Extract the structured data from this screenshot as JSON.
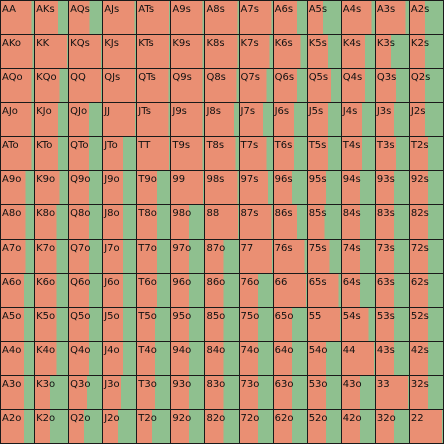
{
  "colors": {
    "fold": "#ea8f73",
    "action": "#8fc08f",
    "grid_line": "#1a1a1a"
  },
  "ranks": [
    "A",
    "K",
    "Q",
    "J",
    "T",
    "9",
    "8",
    "7",
    "6",
    "5",
    "4",
    "3",
    "2"
  ],
  "hands": [
    {
      "label": "AA",
      "freq": 0.08
    },
    {
      "label": "AKs",
      "freq": 0.3
    },
    {
      "label": "AQs",
      "freq": 0.38
    },
    {
      "label": "AJs",
      "freq": 0.05
    },
    {
      "label": "ATs",
      "freq": 0.03
    },
    {
      "label": "A9s",
      "freq": 0.05
    },
    {
      "label": "A8s",
      "freq": 0.05
    },
    {
      "label": "A7s",
      "freq": 0.05
    },
    {
      "label": "A6s",
      "freq": 0.3
    },
    {
      "label": "A5s",
      "freq": 0.55
    },
    {
      "label": "A4s",
      "freq": 0.1
    },
    {
      "label": "A3s",
      "freq": 0.1
    },
    {
      "label": "A2s",
      "freq": 0.55
    },
    {
      "label": "AKo",
      "freq": 0.05
    },
    {
      "label": "KK",
      "freq": 0.03
    },
    {
      "label": "KQs",
      "freq": 0.03
    },
    {
      "label": "KJs",
      "freq": 0.03
    },
    {
      "label": "KTs",
      "freq": 0.03
    },
    {
      "label": "K9s",
      "freq": 0.05
    },
    {
      "label": "K8s",
      "freq": 0.05
    },
    {
      "label": "K7s",
      "freq": 0.1
    },
    {
      "label": "K6s",
      "freq": 0.2
    },
    {
      "label": "K5s",
      "freq": 0.4
    },
    {
      "label": "K4s",
      "freq": 0.3
    },
    {
      "label": "K3s",
      "freq": 0.55
    },
    {
      "label": "K2s",
      "freq": 0.55
    },
    {
      "label": "AQo",
      "freq": 0.08
    },
    {
      "label": "KQo",
      "freq": 0.25
    },
    {
      "label": "QQ",
      "freq": 0.03
    },
    {
      "label": "QJs",
      "freq": 0.03
    },
    {
      "label": "QTs",
      "freq": 0.05
    },
    {
      "label": "Q9s",
      "freq": 0.05
    },
    {
      "label": "Q8s",
      "freq": 0.08
    },
    {
      "label": "Q7s",
      "freq": 0.2
    },
    {
      "label": "Q6s",
      "freq": 0.3
    },
    {
      "label": "Q5s",
      "freq": 0.3
    },
    {
      "label": "Q4s",
      "freq": 0.3
    },
    {
      "label": "Q3s",
      "freq": 0.4
    },
    {
      "label": "Q2s",
      "freq": 0.55
    },
    {
      "label": "AJo",
      "freq": 0.08
    },
    {
      "label": "KJo",
      "freq": 0.3
    },
    {
      "label": "QJo",
      "freq": 0.4
    },
    {
      "label": "JJ",
      "freq": 0.03
    },
    {
      "label": "JTs",
      "freq": 0.05
    },
    {
      "label": "J9s",
      "freq": 0.05
    },
    {
      "label": "J8s",
      "freq": 0.15
    },
    {
      "label": "J7s",
      "freq": 0.3
    },
    {
      "label": "J6s",
      "freq": 0.4
    },
    {
      "label": "J5s",
      "freq": 0.4
    },
    {
      "label": "J4s",
      "freq": 0.4
    },
    {
      "label": "J3s",
      "freq": 0.45
    },
    {
      "label": "J2s",
      "freq": 0.55
    },
    {
      "label": "ATo",
      "freq": 0.08
    },
    {
      "label": "KTo",
      "freq": 0.3
    },
    {
      "label": "QTo",
      "freq": 0.4
    },
    {
      "label": "JTo",
      "freq": 0.4
    },
    {
      "label": "TT",
      "freq": 0.03
    },
    {
      "label": "T9s",
      "freq": 0.05
    },
    {
      "label": "T8s",
      "freq": 0.1
    },
    {
      "label": "T7s",
      "freq": 0.2
    },
    {
      "label": "T6s",
      "freq": 0.4
    },
    {
      "label": "T5s",
      "freq": 0.4
    },
    {
      "label": "T4s",
      "freq": 0.4
    },
    {
      "label": "T3s",
      "freq": 0.4
    },
    {
      "label": "T2s",
      "freq": 0.45
    },
    {
      "label": "A9o",
      "freq": 0.25
    },
    {
      "label": "K9o",
      "freq": 0.25
    },
    {
      "label": "Q9o",
      "freq": 0.4
    },
    {
      "label": "J9o",
      "freq": 0.4
    },
    {
      "label": "T9o",
      "freq": 0.4
    },
    {
      "label": "99",
      "freq": 0.03
    },
    {
      "label": "98s",
      "freq": 0.05
    },
    {
      "label": "97s",
      "freq": 0.15
    },
    {
      "label": "96s",
      "freq": 0.45
    },
    {
      "label": "95s",
      "freq": 0.45
    },
    {
      "label": "94s",
      "freq": 0.45
    },
    {
      "label": "93s",
      "freq": 0.45
    },
    {
      "label": "92s",
      "freq": 0.45
    },
    {
      "label": "A8o",
      "freq": 0.25
    },
    {
      "label": "K8o",
      "freq": 0.35
    },
    {
      "label": "Q8o",
      "freq": 0.4
    },
    {
      "label": "J8o",
      "freq": 0.4
    },
    {
      "label": "T8o",
      "freq": 0.4
    },
    {
      "label": "98o",
      "freq": 0.45
    },
    {
      "label": "88",
      "freq": 0.03
    },
    {
      "label": "87s",
      "freq": 0.05
    },
    {
      "label": "86s",
      "freq": 0.3
    },
    {
      "label": "85s",
      "freq": 0.5
    },
    {
      "label": "84s",
      "freq": 0.45
    },
    {
      "label": "83s",
      "freq": 0.45
    },
    {
      "label": "82s",
      "freq": 0.45
    },
    {
      "label": "A7o",
      "freq": 0.25
    },
    {
      "label": "K7o",
      "freq": 0.35
    },
    {
      "label": "Q7o",
      "freq": 0.4
    },
    {
      "label": "J7o",
      "freq": 0.4
    },
    {
      "label": "T7o",
      "freq": 0.4
    },
    {
      "label": "97o",
      "freq": 0.45
    },
    {
      "label": "87o",
      "freq": 0.45
    },
    {
      "label": "77",
      "freq": 0.03
    },
    {
      "label": "76s",
      "freq": 0.08
    },
    {
      "label": "75s",
      "freq": 0.35
    },
    {
      "label": "74s",
      "freq": 0.45
    },
    {
      "label": "73s",
      "freq": 0.45
    },
    {
      "label": "72s",
      "freq": 0.45
    },
    {
      "label": "A6o",
      "freq": 0.3
    },
    {
      "label": "K6o",
      "freq": 0.35
    },
    {
      "label": "Q6o",
      "freq": 0.4
    },
    {
      "label": "J6o",
      "freq": 0.4
    },
    {
      "label": "T6o",
      "freq": 0.4
    },
    {
      "label": "96o",
      "freq": 0.45
    },
    {
      "label": "86o",
      "freq": 0.45
    },
    {
      "label": "76o",
      "freq": 0.45
    },
    {
      "label": "66",
      "freq": 0.03
    },
    {
      "label": "65s",
      "freq": 0.08
    },
    {
      "label": "64s",
      "freq": 0.45
    },
    {
      "label": "63s",
      "freq": 0.45
    },
    {
      "label": "62s",
      "freq": 0.45
    },
    {
      "label": "A5o",
      "freq": 0.3
    },
    {
      "label": "K5o",
      "freq": 0.35
    },
    {
      "label": "Q5o",
      "freq": 0.4
    },
    {
      "label": "J5o",
      "freq": 0.4
    },
    {
      "label": "T5o",
      "freq": 0.45
    },
    {
      "label": "95o",
      "freq": 0.45
    },
    {
      "label": "85o",
      "freq": 0.45
    },
    {
      "label": "75o",
      "freq": 0.45
    },
    {
      "label": "65o",
      "freq": 0.45
    },
    {
      "label": "55",
      "freq": 0.03
    },
    {
      "label": "54s",
      "freq": 0.2
    },
    {
      "label": "53s",
      "freq": 0.45
    },
    {
      "label": "52s",
      "freq": 0.45
    },
    {
      "label": "A4o",
      "freq": 0.3
    },
    {
      "label": "K4o",
      "freq": 0.35
    },
    {
      "label": "Q4o",
      "freq": 0.4
    },
    {
      "label": "J4o",
      "freq": 0.4
    },
    {
      "label": "T4o",
      "freq": 0.45
    },
    {
      "label": "94o",
      "freq": 0.45
    },
    {
      "label": "84o",
      "freq": 0.45
    },
    {
      "label": "74o",
      "freq": 0.45
    },
    {
      "label": "64o",
      "freq": 0.45
    },
    {
      "label": "54o",
      "freq": 0.45
    },
    {
      "label": "44",
      "freq": 0.03
    },
    {
      "label": "43s",
      "freq": 0.45
    },
    {
      "label": "42s",
      "freq": 0.45
    },
    {
      "label": "A3o",
      "freq": 0.3
    },
    {
      "label": "K3o",
      "freq": 0.55
    },
    {
      "label": "Q3o",
      "freq": 0.45
    },
    {
      "label": "J3o",
      "freq": 0.45
    },
    {
      "label": "T3o",
      "freq": 0.45
    },
    {
      "label": "93o",
      "freq": 0.45
    },
    {
      "label": "83o",
      "freq": 0.45
    },
    {
      "label": "73o",
      "freq": 0.45
    },
    {
      "label": "63o",
      "freq": 0.45
    },
    {
      "label": "53o",
      "freq": 0.45
    },
    {
      "label": "43o",
      "freq": 0.45
    },
    {
      "label": "33",
      "freq": 0.03
    },
    {
      "label": "32s",
      "freq": 0.45
    },
    {
      "label": "A2o",
      "freq": 0.3
    },
    {
      "label": "K2o",
      "freq": 0.55
    },
    {
      "label": "Q2o",
      "freq": 0.55
    },
    {
      "label": "J2o",
      "freq": 0.55
    },
    {
      "label": "T2o",
      "freq": 0.55
    },
    {
      "label": "92o",
      "freq": 0.45
    },
    {
      "label": "82o",
      "freq": 0.45
    },
    {
      "label": "72o",
      "freq": 0.45
    },
    {
      "label": "62o",
      "freq": 0.45
    },
    {
      "label": "52o",
      "freq": 0.45
    },
    {
      "label": "42o",
      "freq": 0.45
    },
    {
      "label": "32o",
      "freq": 0.45
    },
    {
      "label": "22",
      "freq": 0.03
    }
  ]
}
